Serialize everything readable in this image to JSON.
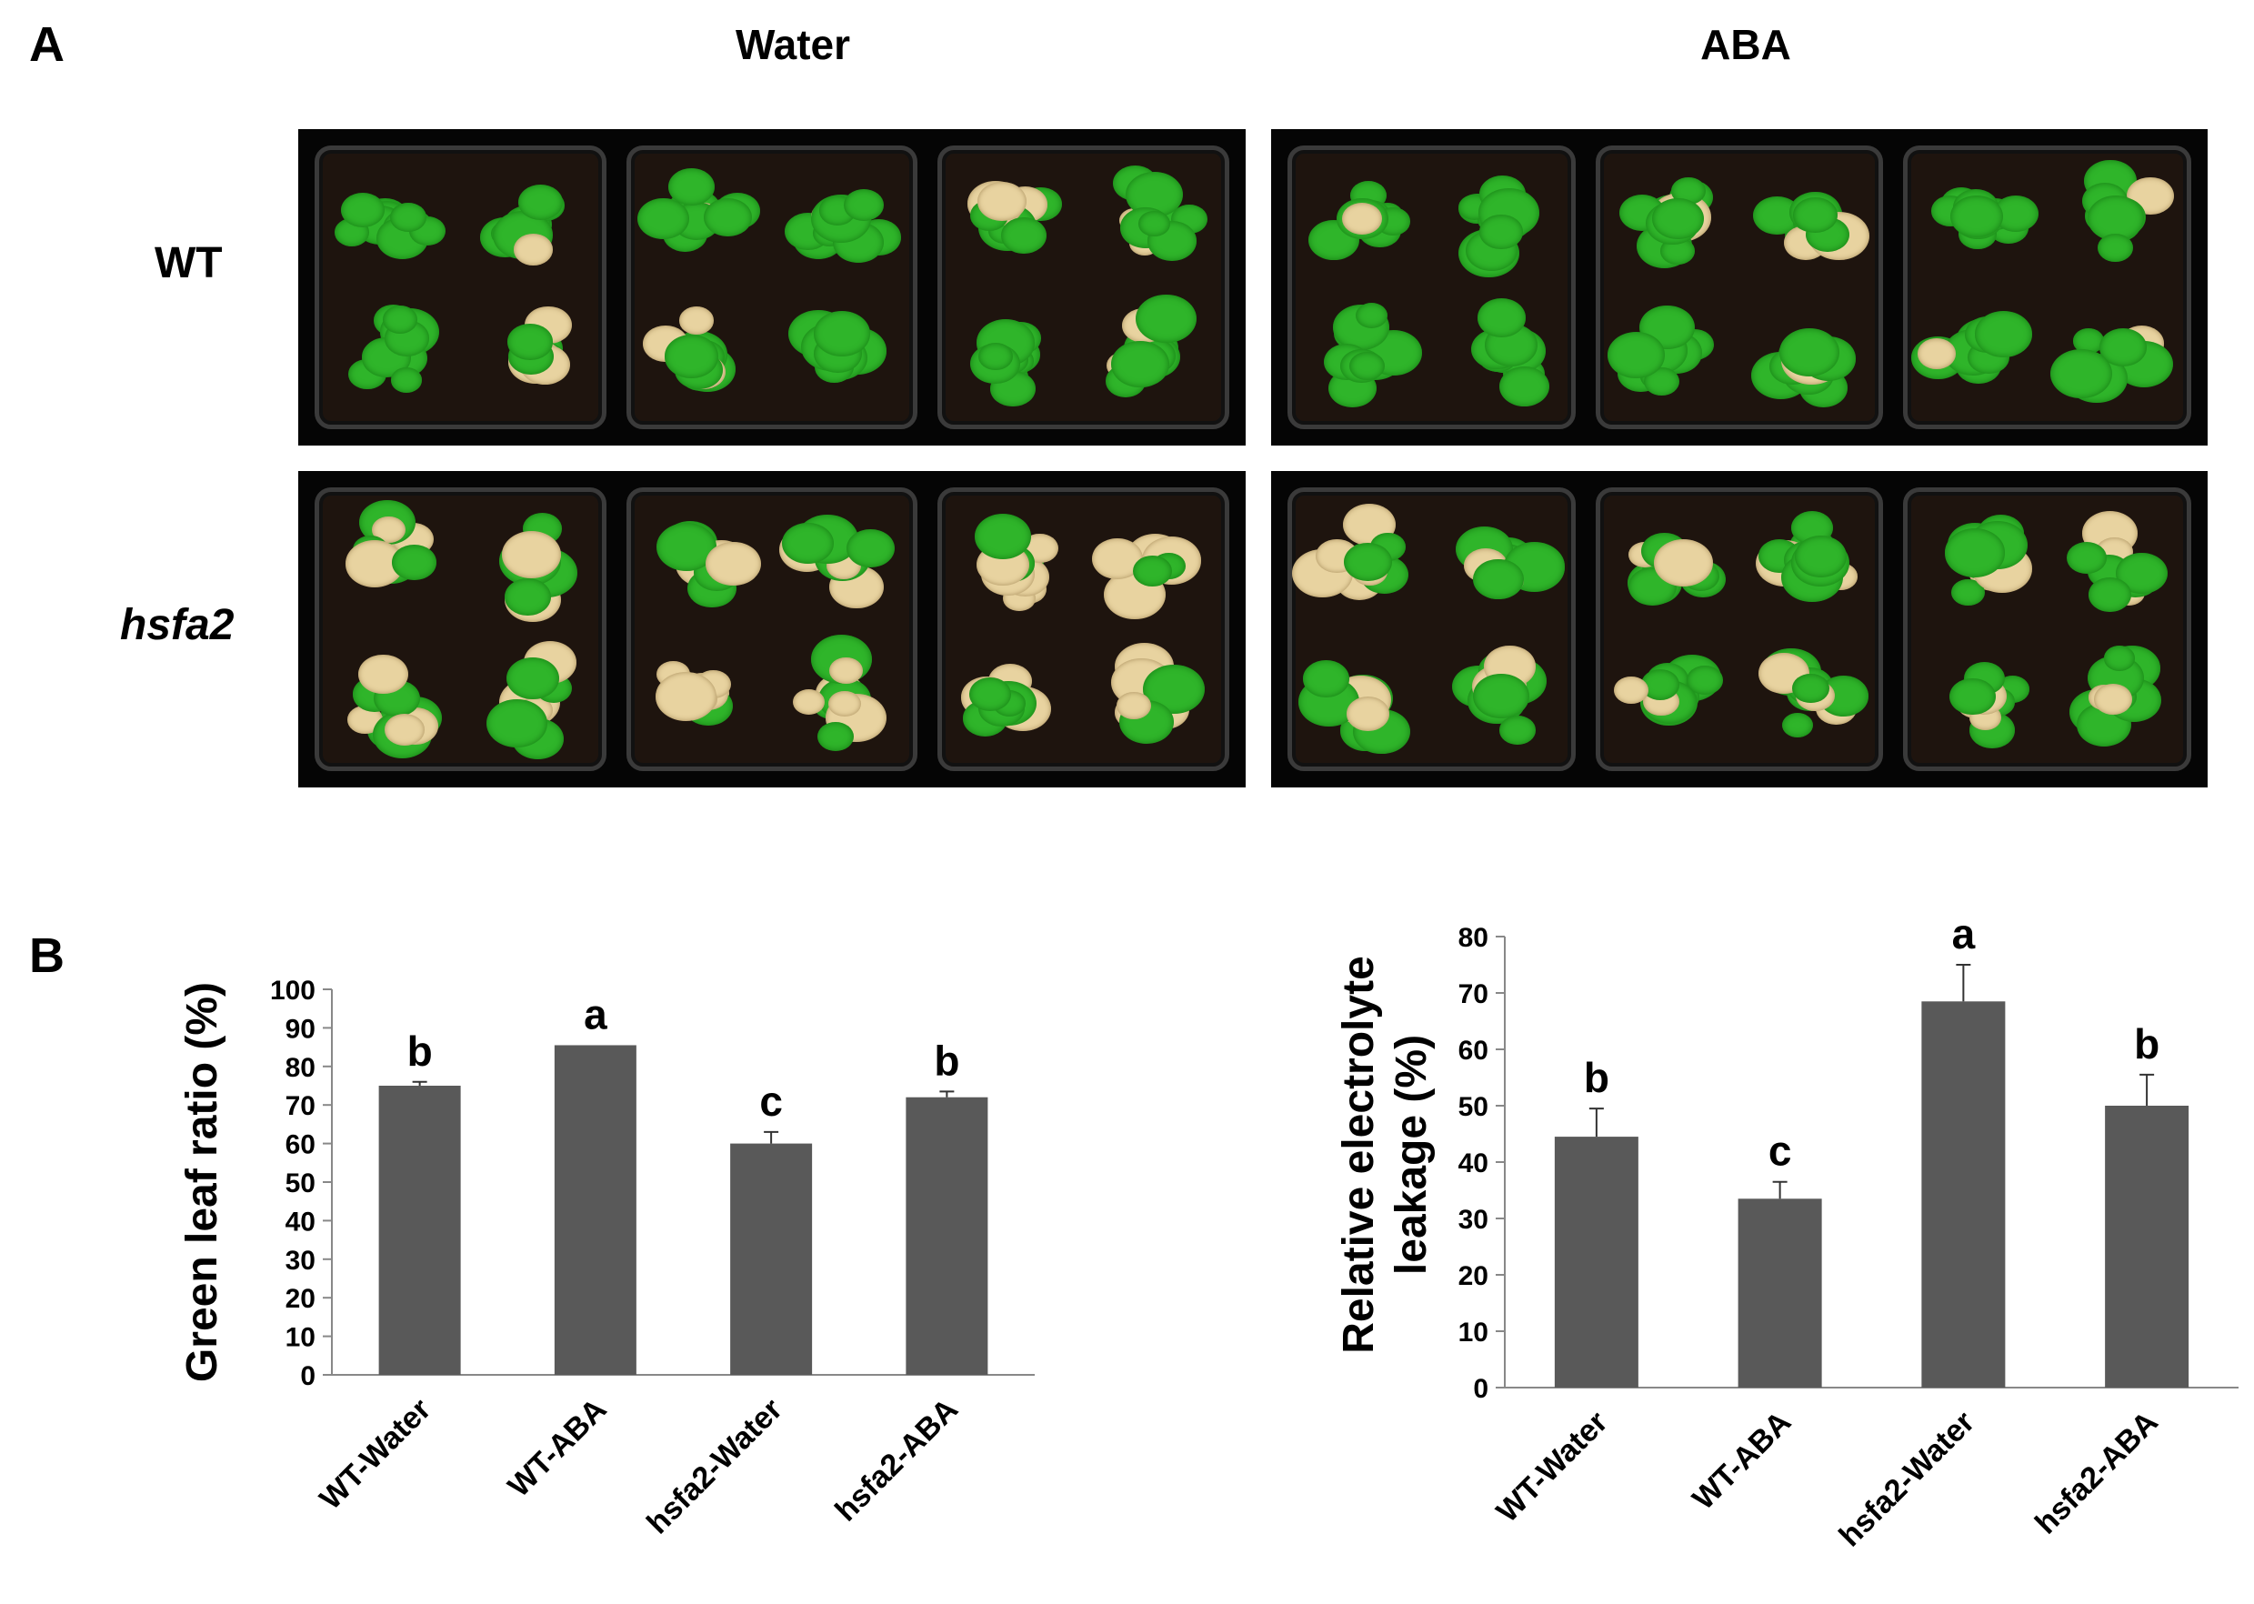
{
  "panels": {
    "a_label": "A",
    "b_label": "B"
  },
  "photo_grid": {
    "columns": [
      "Water",
      "ABA"
    ],
    "rows": [
      "WT",
      "hsfa2"
    ],
    "trays_per_condition": 3,
    "colors": {
      "background": "#050505",
      "soil": "#1e140e",
      "leaf_green": "#2fb52a",
      "senescent": "#e8d3a0"
    },
    "senescence_level": {
      "WT-Water": 0.15,
      "WT-ABA": 0.08,
      "hsfa2-Water": 0.45,
      "hsfa2-ABA": 0.3
    }
  },
  "chart_data": [
    {
      "type": "bar",
      "categories": [
        "WT-Water",
        "WT-ABA",
        "hsfa2-Water",
        "hsfa2-ABA"
      ],
      "values": [
        75,
        85.5,
        60,
        72
      ],
      "errors": [
        1,
        0,
        3,
        1.5
      ],
      "significance": [
        "b",
        "a",
        "c",
        "b"
      ],
      "ylabel": "Green leaf ratio (%)",
      "ylim": [
        0,
        100
      ],
      "yticks": [
        0,
        10,
        20,
        30,
        40,
        50,
        60,
        70,
        80,
        90,
        100
      ],
      "bar_color": "#595959",
      "grid": false
    },
    {
      "type": "bar",
      "categories": [
        "WT-Water",
        "WT-ABA",
        "hsfa2-Water",
        "hsfa2-ABA"
      ],
      "values": [
        44.5,
        33.5,
        68.5,
        50
      ],
      "errors": [
        5,
        3,
        6.5,
        5.5
      ],
      "significance": [
        "b",
        "c",
        "a",
        "b"
      ],
      "ylabel_lines": [
        "Relative electrolyte",
        "leakage (%)"
      ],
      "ylim": [
        0,
        80
      ],
      "yticks": [
        0,
        10,
        20,
        30,
        40,
        50,
        60,
        70,
        80
      ],
      "bar_color": "#595959",
      "grid": false
    }
  ]
}
